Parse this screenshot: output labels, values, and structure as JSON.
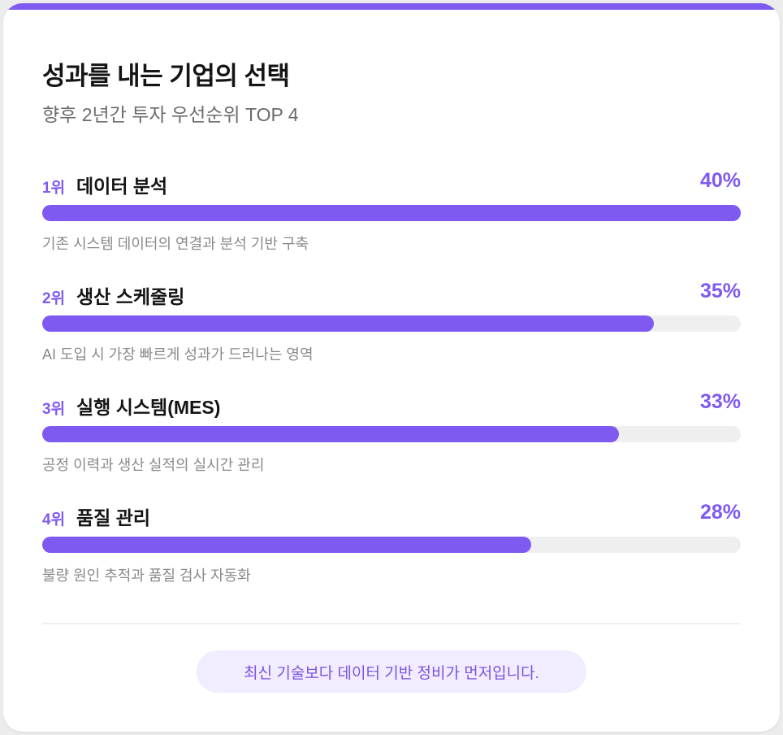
{
  "colors": {
    "accent": "#7f5af0",
    "track": "#efefef",
    "pill_bg": "#f1ecff",
    "pill_text": "#7a55e0"
  },
  "header": {
    "title": "성과를 내는 기업의 선택",
    "subtitle": "향후 2년간 투자 우선순위 TOP 4"
  },
  "chart_data": {
    "type": "bar",
    "orientation": "horizontal",
    "categories": [
      "데이터 분석",
      "생산 스케줄링",
      "실행 시스템(MES)",
      "품질 관리"
    ],
    "values": [
      40,
      35,
      33,
      28
    ],
    "unit": "%",
    "xlim": [
      0,
      40
    ],
    "grid": false,
    "items": [
      {
        "rank": "1위",
        "label": "데이터 분석",
        "value": 40,
        "value_label": "40%",
        "description": "기존 시스템 데이터의 연결과 분석 기반 구축"
      },
      {
        "rank": "2위",
        "label": "생산 스케줄링",
        "value": 35,
        "value_label": "35%",
        "description": "AI 도입 시 가장 빠르게 성과가 드러나는 영역"
      },
      {
        "rank": "3위",
        "label": "실행 시스템(MES)",
        "value": 33,
        "value_label": "33%",
        "description": "공정 이력과 생산 실적의 실시간 관리"
      },
      {
        "rank": "4위",
        "label": "품질 관리",
        "value": 28,
        "value_label": "28%",
        "description": "불량 원인 추적과 품질 검사 자동화"
      }
    ]
  },
  "footer": {
    "note": "최신 기술보다 데이터 기반 정비가 먼저입니다."
  }
}
